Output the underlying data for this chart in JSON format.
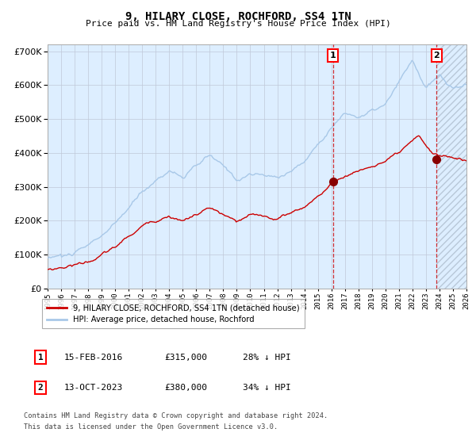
{
  "title": "9, HILARY CLOSE, ROCHFORD, SS4 1TN",
  "subtitle": "Price paid vs. HM Land Registry's House Price Index (HPI)",
  "hpi_color": "#a8c8e8",
  "price_color": "#cc0000",
  "marker_color": "#880000",
  "vline_color": "#cc0000",
  "background_color": "#ddeeff",
  "grid_color": "#c0c8d8",
  "ylim": [
    0,
    720000
  ],
  "ytick_step": 100000,
  "xmin": 1995,
  "xmax": 2026,
  "transaction1": {
    "date": "15-FEB-2016",
    "price": 315000,
    "label": "1",
    "year": 2016.12
  },
  "transaction2": {
    "date": "13-OCT-2023",
    "price": 380000,
    "label": "2",
    "year": 2023.79
  },
  "footnote1": "Contains HM Land Registry data © Crown copyright and database right 2024.",
  "footnote2": "This data is licensed under the Open Government Licence v3.0.",
  "legend1_text": "9, HILARY CLOSE, ROCHFORD, SS4 1TN (detached house)",
  "legend2_text": "HPI: Average price, detached house, Rochford",
  "table_row1": [
    "1",
    "15-FEB-2016",
    "£315,000",
    "28% ↓ HPI"
  ],
  "table_row2": [
    "2",
    "13-OCT-2023",
    "£380,000",
    "34% ↓ HPI"
  ]
}
